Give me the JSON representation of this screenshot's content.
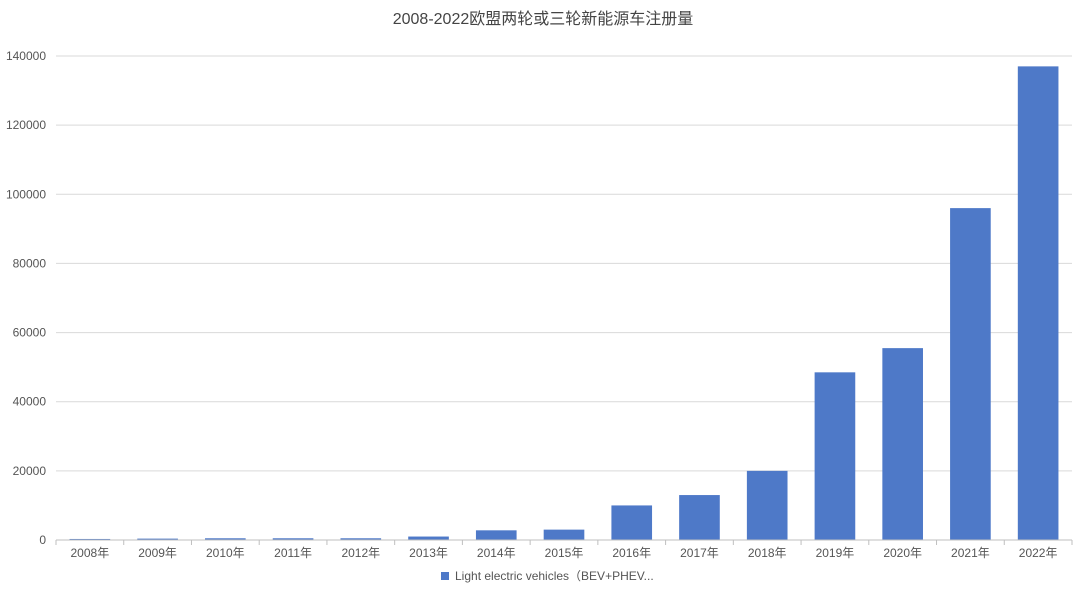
{
  "chart_data": {
    "type": "bar",
    "title": "2008-2022欧盟两轮或三轮新能源车注册量",
    "categories": [
      "2008年",
      "2009年",
      "2010年",
      "2011年",
      "2012年",
      "2013年",
      "2014年",
      "2015年",
      "2016年",
      "2017年",
      "2018年",
      "2019年",
      "2020年",
      "2021年",
      "2022年"
    ],
    "series": [
      {
        "name": "Light electric vehicles（BEV+PHEV...",
        "color": "#4e79c8",
        "values": [
          300,
          400,
          500,
          500,
          500,
          1000,
          2800,
          3000,
          10000,
          13000,
          20000,
          48500,
          55500,
          96000,
          137000
        ]
      }
    ],
    "ylim": [
      0,
      140000
    ],
    "yticks": [
      "0",
      "20000",
      "40000",
      "60000",
      "80000",
      "100000",
      "120000",
      "140000"
    ],
    "grid": true,
    "legend_position": "bottom"
  }
}
